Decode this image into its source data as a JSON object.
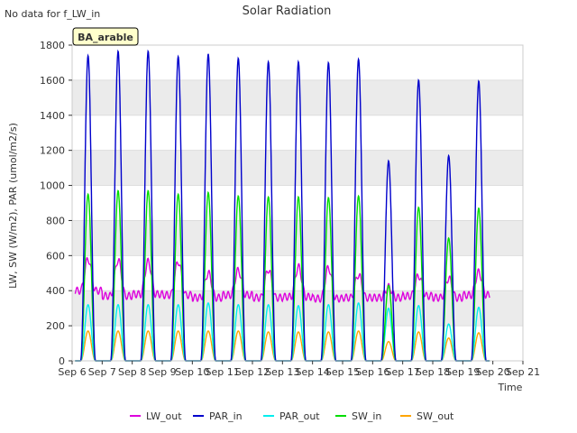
{
  "no_data_note": "No data for f_LW_in",
  "badge": "BA_arable",
  "chart_data": {
    "type": "line",
    "title": "Solar Radiation",
    "xlabel": "Time",
    "ylabel": "LW, SW (W/m2), PAR (umol/m2/s)",
    "xlim": [
      6,
      21
    ],
    "ylim": [
      0,
      1800
    ],
    "x_ticks": [
      {
        "v": 6,
        "label": "Sep 6"
      },
      {
        "v": 7,
        "label": "Sep 7"
      },
      {
        "v": 8,
        "label": "Sep 8"
      },
      {
        "v": 9,
        "label": "Sep 9"
      },
      {
        "v": 10,
        "label": "Sep 10"
      },
      {
        "v": 11,
        "label": "Sep 11"
      },
      {
        "v": 12,
        "label": "Sep 12"
      },
      {
        "v": 13,
        "label": "Sep 13"
      },
      {
        "v": 14,
        "label": "Sep 14"
      },
      {
        "v": 15,
        "label": "Sep 15"
      },
      {
        "v": 16,
        "label": "Sep 16"
      },
      {
        "v": 17,
        "label": "Sep 17"
      },
      {
        "v": 18,
        "label": "Sep 18"
      },
      {
        "v": 19,
        "label": "Sep 19"
      },
      {
        "v": 20,
        "label": "Sep 20"
      },
      {
        "v": 21,
        "label": "Sep 21"
      }
    ],
    "y_ticks": [
      0,
      200,
      400,
      600,
      800,
      1000,
      1200,
      1400,
      1600,
      1800
    ],
    "grid": true,
    "legend_position": "bottom",
    "days": [
      6,
      7,
      8,
      9,
      10,
      11,
      12,
      13,
      14,
      15,
      16,
      17,
      18,
      19
    ],
    "series": [
      {
        "name": "LW_out",
        "color": "#dd00dd",
        "daily_peak": [
          580,
          575,
          565,
          565,
          500,
          515,
          520,
          535,
          530,
          490,
          420,
          485,
          470,
          505
        ],
        "night_level": [
          400,
          370,
          380,
          375,
          360,
          375,
          360,
          365,
          355,
          360,
          360,
          370,
          360,
          375
        ]
      },
      {
        "name": "PAR_in",
        "color": "#0000cc",
        "daily_peak": [
          1740,
          1765,
          1765,
          1735,
          1750,
          1725,
          1705,
          1705,
          1700,
          1720,
          1140,
          1600,
          1170,
          1595
        ]
      },
      {
        "name": "PAR_out",
        "color": "#00eeee",
        "daily_peak": [
          320,
          320,
          320,
          320,
          330,
          320,
          320,
          315,
          320,
          330,
          300,
          315,
          210,
          305
        ]
      },
      {
        "name": "SW_in",
        "color": "#00dd00",
        "daily_peak": [
          950,
          970,
          970,
          950,
          960,
          940,
          935,
          935,
          930,
          940,
          430,
          875,
          700,
          870
        ]
      },
      {
        "name": "SW_out",
        "color": "#ffa500",
        "daily_peak": [
          170,
          170,
          170,
          170,
          170,
          170,
          165,
          165,
          165,
          170,
          110,
          165,
          130,
          160
        ]
      }
    ]
  }
}
